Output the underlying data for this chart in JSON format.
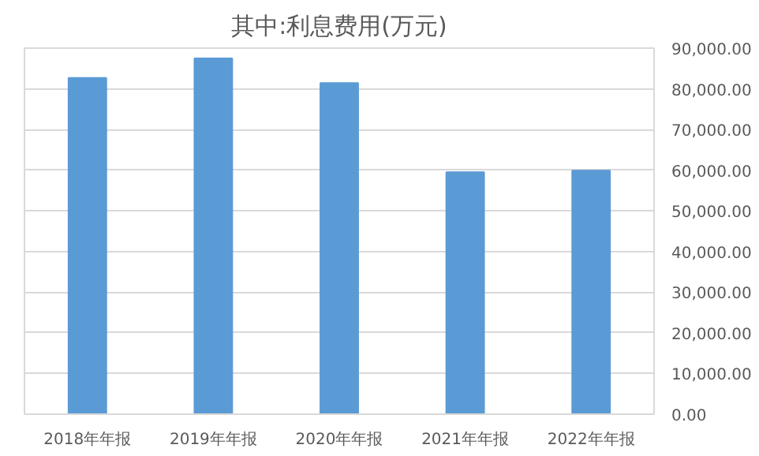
{
  "chart_data": {
    "type": "bar",
    "title": "其中:利息费用(万元)",
    "categories": [
      "2018年年报",
      "2019年年报",
      "2020年年报",
      "2021年年报",
      "2022年年报"
    ],
    "values": [
      82700,
      87500,
      81400,
      59500,
      59900
    ],
    "color": "#5b9bd5",
    "ylim": [
      0,
      90000
    ],
    "yticks": [
      {
        "value": 0,
        "label": "0.00"
      },
      {
        "value": 10000,
        "label": "10,000.00"
      },
      {
        "value": 20000,
        "label": "20,000.00"
      },
      {
        "value": 30000,
        "label": "30,000.00"
      },
      {
        "value": 40000,
        "label": "40,000.00"
      },
      {
        "value": 50000,
        "label": "50,000.00"
      },
      {
        "value": 60000,
        "label": "60,000.00"
      },
      {
        "value": 70000,
        "label": "70,000.00"
      },
      {
        "value": 80000,
        "label": "80,000.00"
      },
      {
        "value": 90000,
        "label": "90,000.00"
      }
    ],
    "grid": "y"
  }
}
